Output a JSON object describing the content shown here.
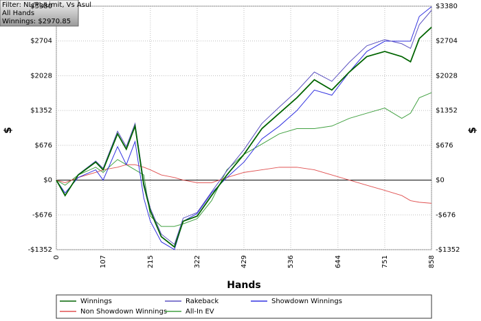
{
  "chart_data": {
    "type": "line",
    "info": [
      "Filter: NL/PL/Limit, Vs Asul",
      "All Hands",
      "Winnings: $2970.85"
    ],
    "x_label": "Hands",
    "y_label": "$",
    "x": [
      0,
      20,
      50,
      90,
      107,
      140,
      160,
      180,
      200,
      215,
      240,
      270,
      290,
      322,
      355,
      390,
      429,
      470,
      510,
      550,
      590,
      630,
      670,
      710,
      751,
      790,
      810,
      830,
      858
    ],
    "series": [
      {
        "name": "Winnings",
        "color": "#006400",
        "values": [
          0,
          -300,
          100,
          350,
          200,
          900,
          600,
          1050,
          -100,
          -600,
          -1100,
          -1300,
          -800,
          -700,
          -300,
          100,
          500,
          1000,
          1300,
          1600,
          1950,
          1750,
          2100,
          2400,
          2500,
          2400,
          2300,
          2750,
          2970.85
        ]
      },
      {
        "name": "Rakeback",
        "color": "#5a50c0",
        "values": [
          0,
          -300,
          110,
          370,
          230,
          950,
          650,
          1100,
          -50,
          -550,
          -1050,
          -1250,
          -740,
          -630,
          -230,
          180,
          590,
          1100,
          1420,
          1730,
          2100,
          1920,
          2290,
          2610,
          2730,
          2650,
          2560,
          3020,
          3300
        ]
      },
      {
        "name": "Showdown Winnings",
        "color": "#3030e0",
        "values": [
          0,
          -250,
          50,
          200,
          0,
          650,
          300,
          750,
          -350,
          -800,
          -1200,
          -1350,
          -800,
          -650,
          -250,
          50,
          350,
          800,
          1050,
          1350,
          1750,
          1650,
          2100,
          2500,
          2700,
          2700,
          2700,
          3180,
          3370
        ]
      },
      {
        "name": "Non Showdown Winnings",
        "color": "#e05050",
        "values": [
          0,
          -50,
          50,
          150,
          200,
          250,
          300,
          300,
          250,
          200,
          100,
          50,
          0,
          -50,
          -50,
          50,
          150,
          200,
          250,
          250,
          200,
          100,
          0,
          -100,
          -200,
          -300,
          -400,
          -430,
          -450
        ]
      },
      {
        "name": "All-In EV",
        "color": "#40a040",
        "values": [
          0,
          -100,
          100,
          250,
          150,
          400,
          300,
          200,
          100,
          -700,
          -900,
          -900,
          -850,
          -750,
          -400,
          200,
          500,
          700,
          900,
          1000,
          1000,
          1050,
          1200,
          1300,
          1400,
          1200,
          1300,
          1600,
          1700
        ]
      }
    ],
    "xlim": [
      0,
      858
    ],
    "xticks": [
      0,
      107,
      215,
      322,
      429,
      536,
      644,
      751,
      858
    ],
    "ylim": [
      -1352,
      3380
    ],
    "yticks": [
      {
        "value": -1352,
        "label": "-$1352"
      },
      {
        "value": -676,
        "label": "-$676"
      },
      {
        "value": 0,
        "label": "$0"
      },
      {
        "value": 676,
        "label": "$676"
      },
      {
        "value": 1352,
        "label": "$1352"
      },
      {
        "value": 2028,
        "label": "$2028"
      },
      {
        "value": 2704,
        "label": "$2704"
      },
      {
        "value": 3380,
        "label": "$3380"
      }
    ],
    "grid": true
  }
}
